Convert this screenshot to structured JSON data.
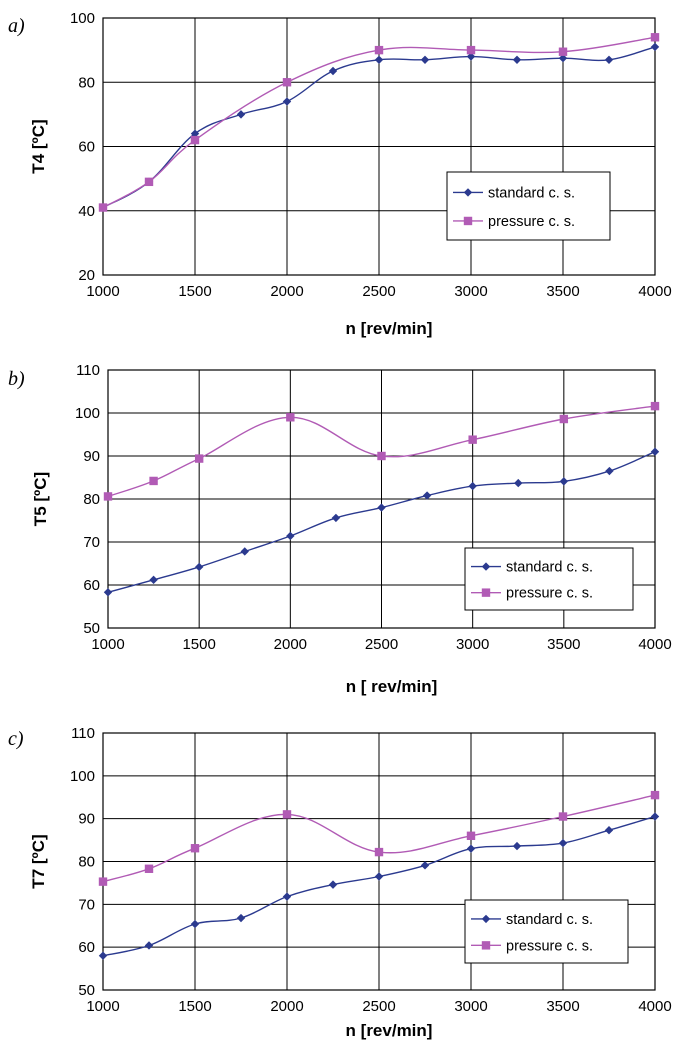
{
  "chart_data": [
    {
      "type": "line",
      "panel_label": "a)",
      "xlabel": "n  [rev/min]",
      "ylabel": "T4  [ºC]",
      "xlim": [
        1000,
        4000
      ],
      "ylim": [
        20,
        100
      ],
      "xticks": [
        1000,
        1500,
        2000,
        2500,
        3000,
        3500,
        4000
      ],
      "yticks": [
        20,
        40,
        60,
        80,
        100
      ],
      "grid": true,
      "legend_placement": "middle-right",
      "series": [
        {
          "name": "standard c. s.",
          "color": "#2b3a8f",
          "marker": "diamond",
          "x": [
            1000,
            1250,
            1500,
            1750,
            2000,
            2250,
            2500,
            2750,
            3000,
            3250,
            3500,
            3750,
            4000
          ],
          "y": [
            41,
            49,
            64,
            70,
            74,
            83.5,
            87,
            87,
            88,
            87,
            87.5,
            87,
            91
          ]
        },
        {
          "name": "pressure c. s.",
          "color": "#b15bb5",
          "marker": "square",
          "x": [
            1000,
            1250,
            1500,
            2000,
            2500,
            3000,
            3500,
            4000
          ],
          "y": [
            41,
            49,
            62,
            80,
            90,
            90,
            89.5,
            94
          ]
        }
      ]
    },
    {
      "type": "line",
      "panel_label": "b)",
      "xlabel": "n  [ rev/min]",
      "ylabel": "T5  [ºC]",
      "xlim": [
        1000,
        4000
      ],
      "ylim": [
        50,
        110
      ],
      "xticks": [
        1000,
        1500,
        2000,
        2500,
        3000,
        3500,
        4000
      ],
      "yticks": [
        50,
        60,
        70,
        80,
        90,
        100,
        110
      ],
      "grid": true,
      "legend_placement": "bottom-right",
      "series": [
        {
          "name": "standard c. s.",
          "color": "#2b3a8f",
          "marker": "diamond",
          "x": [
            1000,
            1250,
            1500,
            1750,
            2000,
            2250,
            2500,
            2750,
            3000,
            3250,
            3500,
            3750,
            4000
          ],
          "y": [
            58.3,
            61.2,
            64.2,
            67.8,
            71.4,
            75.6,
            78,
            80.8,
            83,
            83.7,
            84.1,
            86.5,
            91
          ]
        },
        {
          "name": "pressure c. s.",
          "color": "#b15bb5",
          "marker": "square",
          "x": [
            1000,
            1250,
            1500,
            2000,
            2500,
            3000,
            3500,
            4000
          ],
          "y": [
            80.6,
            84.2,
            89.4,
            99,
            90,
            93.8,
            98.6,
            101.6
          ]
        }
      ]
    },
    {
      "type": "line",
      "panel_label": "c)",
      "xlabel": "n  [rev/min]",
      "ylabel": "T7  [ºC]",
      "xlim": [
        1000,
        4000
      ],
      "ylim": [
        50,
        110
      ],
      "xticks": [
        1000,
        1500,
        2000,
        2500,
        3000,
        3500,
        4000
      ],
      "yticks": [
        50,
        60,
        70,
        80,
        90,
        100,
        110
      ],
      "grid": true,
      "legend_placement": "bottom-right",
      "series": [
        {
          "name": "standard c. s.",
          "color": "#2b3a8f",
          "marker": "diamond",
          "x": [
            1000,
            1250,
            1500,
            1750,
            2000,
            2250,
            2500,
            2750,
            3000,
            3250,
            3500,
            3750,
            4000
          ],
          "y": [
            58,
            60.4,
            65.4,
            66.8,
            71.8,
            74.6,
            76.5,
            79.1,
            83,
            83.6,
            84.3,
            87.3,
            90.5
          ]
        },
        {
          "name": "pressure c. s.",
          "color": "#b15bb5",
          "marker": "square",
          "x": [
            1000,
            1250,
            1500,
            2000,
            2500,
            3000,
            3500,
            4000
          ],
          "y": [
            75.3,
            78.3,
            83.1,
            91,
            82.2,
            86,
            90.5,
            95.5
          ]
        }
      ]
    }
  ]
}
